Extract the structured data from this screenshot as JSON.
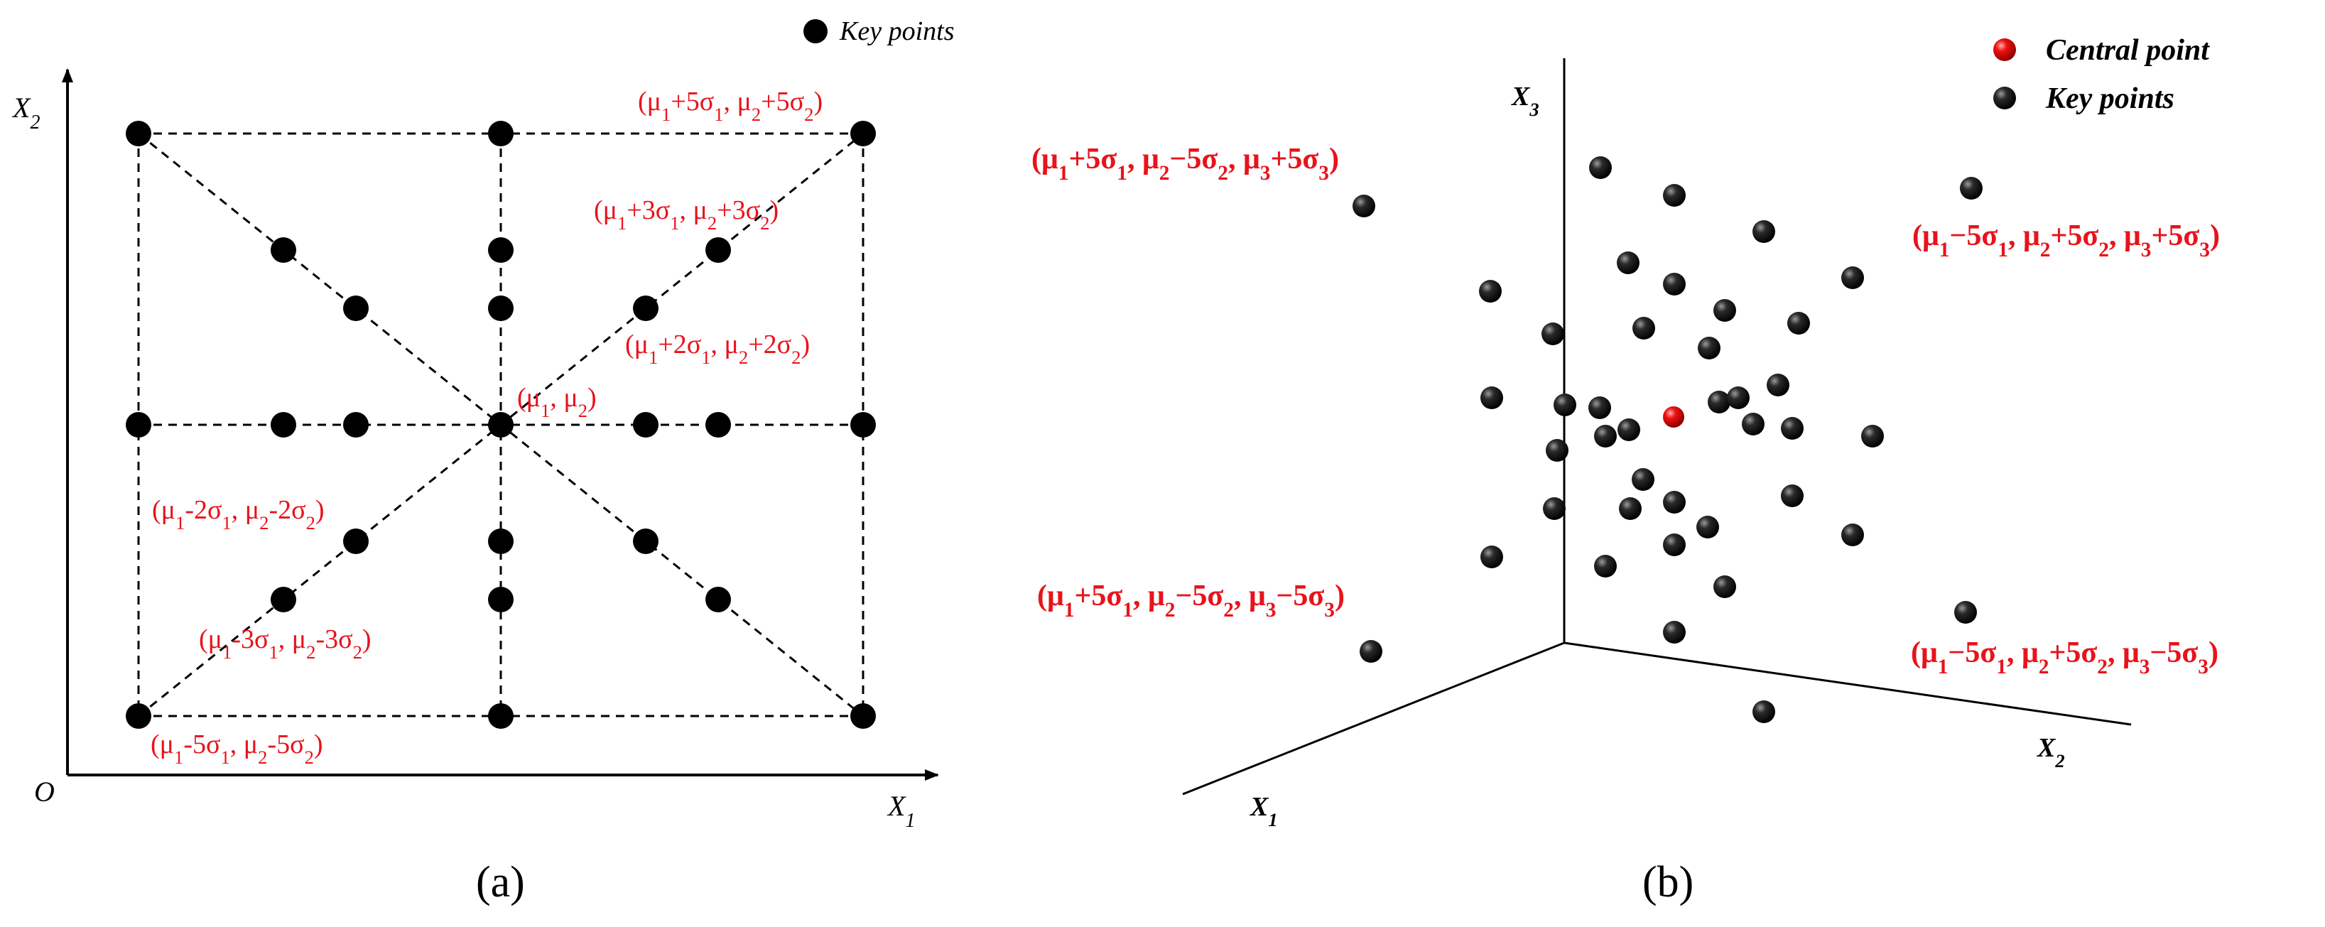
{
  "panel_a": {
    "caption": "(a)",
    "legend_label": "Key points",
    "axis_x": "X1",
    "axis_y": "X2",
    "origin": "O",
    "labels": {
      "p5": "(μ1+5σ1, μ2+5σ2)",
      "p3": "(μ1+3σ1, μ2+3σ2)",
      "p2": "(μ1+2σ1, μ2+2σ2)",
      "center": "(μ1, μ2)",
      "m2": "(μ1-2σ1, μ2-2σ2)",
      "m3": "(μ1-3σ1, μ2-3σ2)",
      "m5": "(μ1-5σ1, μ2-5σ2)"
    }
  },
  "panel_b": {
    "caption": "(b)",
    "legend_central": "Central point",
    "legend_key": "Key points",
    "axis_x1": "X1",
    "axis_x2": "X2",
    "axis_x3": "X3",
    "labels": {
      "tl": "(μ1+5σ1, μ2−5σ2, μ3+5σ3)",
      "tr": "(μ1−5σ1, μ2+5σ2, μ3+5σ3)",
      "bl": "(μ1+5σ1, μ2−5σ2, μ3−5σ3)",
      "br": "(μ1−5σ1, μ2+5σ2, μ3−5σ3)"
    }
  },
  "colors": {
    "key_point": "#000000",
    "central_point": "#e8131b",
    "label": "#e8131b"
  }
}
